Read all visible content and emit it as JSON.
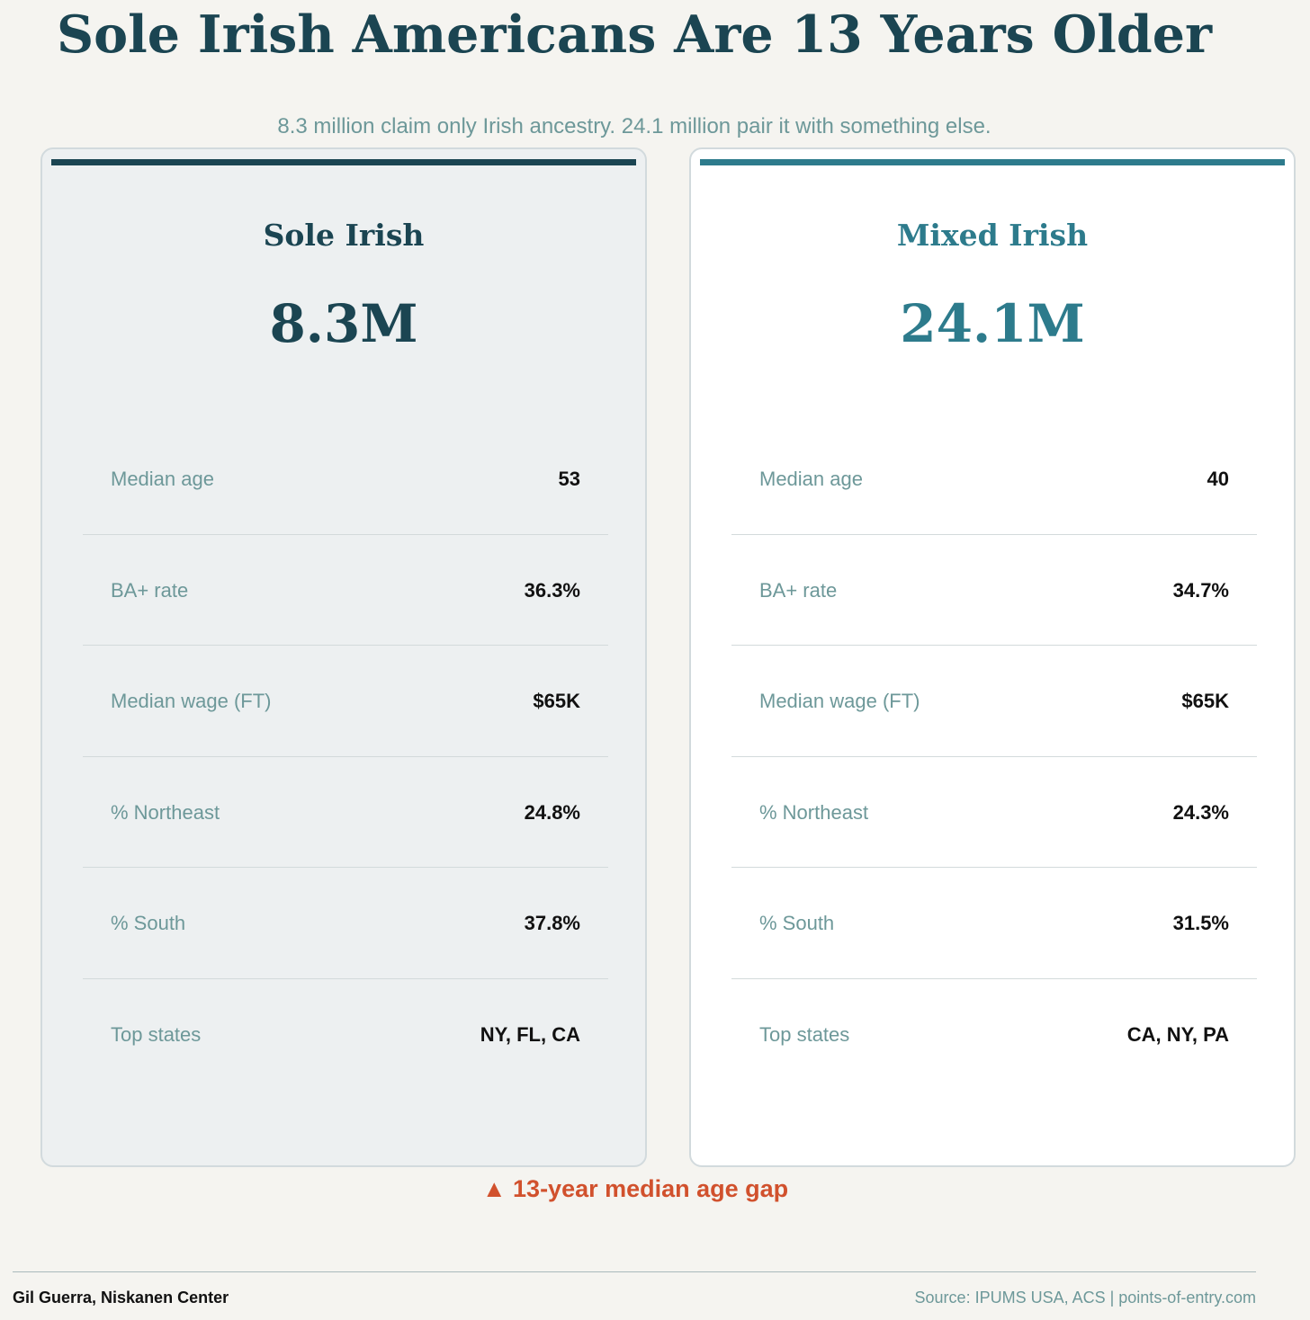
{
  "title": "Sole Irish Americans Are 13 Years Older",
  "subtitle": "8.3 million claim only Irish ancestry. 24.1 million pair it with something else.",
  "colors": {
    "background": "#f5f4f0",
    "dark_teal": "#1b4552",
    "teal": "#2d7b8c",
    "label_gray": "#6d9899",
    "highlight_orange": "#d1512d"
  },
  "cards": [
    {
      "name": "Sole Irish",
      "population": "8.3M",
      "stats": [
        {
          "label": "Median age",
          "value": "53"
        },
        {
          "label": "BA+ rate",
          "value": "36.3%"
        },
        {
          "label": "Median wage (FT)",
          "value": "$65K"
        },
        {
          "label": "% Northeast",
          "value": "24.8%"
        },
        {
          "label": "% South",
          "value": "37.8%"
        },
        {
          "label": "Top states",
          "value": "NY, FL, CA"
        }
      ]
    },
    {
      "name": "Mixed Irish",
      "population": "24.1M",
      "stats": [
        {
          "label": "Median age",
          "value": "40"
        },
        {
          "label": "BA+ rate",
          "value": "34.7%"
        },
        {
          "label": "Median wage (FT)",
          "value": "$65K"
        },
        {
          "label": "% Northeast",
          "value": "24.3%"
        },
        {
          "label": "% South",
          "value": "31.5%"
        },
        {
          "label": "Top states",
          "value": "CA, NY, PA"
        }
      ]
    }
  ],
  "gap_callout": "▲ 13-year median age gap",
  "footer": {
    "author": "Gil Guerra, Niskanen Center",
    "source": "Source: IPUMS USA, ACS  |  points-of-entry.com"
  }
}
